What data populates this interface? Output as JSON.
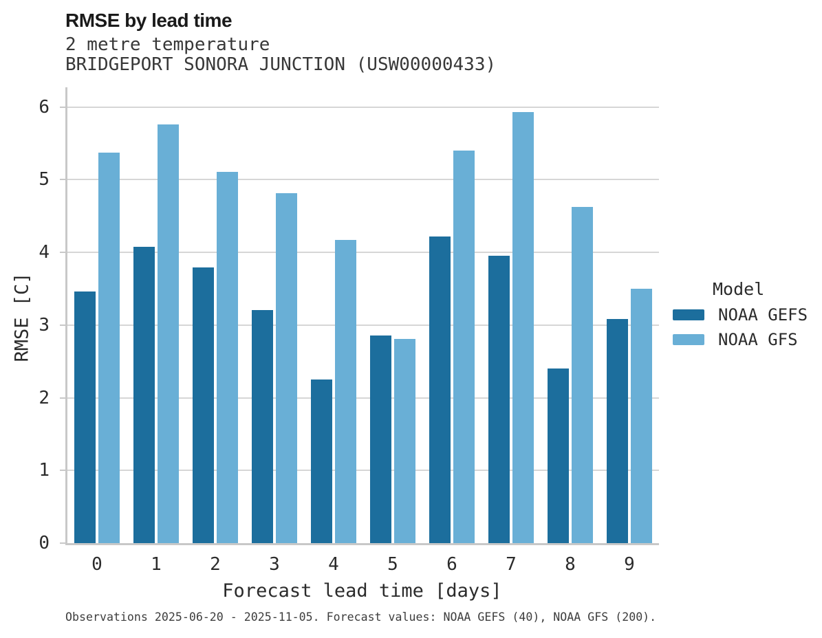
{
  "title": "RMSE by lead time",
  "subtitle1": "2 metre temperature",
  "subtitle2": "BRIDGEPORT SONORA JUNCTION (USW00000433)",
  "footer": "Observations 2025-06-20 - 2025-11-05. Forecast values: NOAA GEFS (40), NOAA GFS (200).",
  "legend": {
    "title": "Model",
    "items": [
      {
        "label": "NOAA GEFS",
        "color": "#1c6e9d"
      },
      {
        "label": "NOAA GFS",
        "color": "#69afd6"
      }
    ]
  },
  "colors": {
    "gefs": "#1c6e9d",
    "gfs": "#69afd6",
    "gridline": "#d6d6d6",
    "axis_spine": "#c8c8c8",
    "text": "#2b2b2b"
  },
  "chart_data": {
    "type": "bar",
    "title": "RMSE by lead time",
    "subtitle": [
      "2 metre temperature",
      "BRIDGEPORT SONORA JUNCTION (USW00000433)"
    ],
    "categories": [
      "0",
      "1",
      "2",
      "3",
      "4",
      "5",
      "6",
      "7",
      "8",
      "9"
    ],
    "series": [
      {
        "name": "NOAA GEFS",
        "color": "#1c6e9d",
        "values": [
          3.46,
          4.08,
          3.79,
          3.21,
          2.25,
          2.86,
          4.22,
          3.95,
          2.4,
          3.08
        ]
      },
      {
        "name": "NOAA GFS",
        "color": "#69afd6",
        "values": [
          5.37,
          5.76,
          5.11,
          4.81,
          4.17,
          2.81,
          5.4,
          5.93,
          4.62,
          3.5
        ]
      }
    ],
    "xlabel": "Forecast lead time [days]",
    "ylabel": "RMSE [C]",
    "ylim": [
      0,
      6.27
    ],
    "yticks": [
      0,
      1,
      2,
      3,
      4,
      5,
      6
    ],
    "grid": true,
    "legend_title": "Model",
    "legend_position": "right",
    "caption": "Observations 2025-06-20 - 2025-11-05. Forecast values: NOAA GEFS (40), NOAA GFS (200)."
  }
}
